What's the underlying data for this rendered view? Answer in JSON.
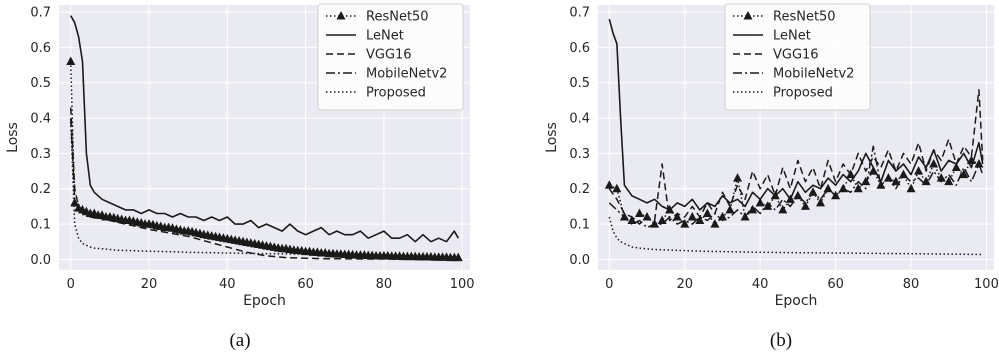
{
  "figure": {
    "captions": [
      "(a)",
      "(b)"
    ]
  },
  "colors": {
    "plot_background": "#eaeaf2",
    "grid": "#ffffff",
    "line": "#1a1a1a",
    "text": "#262626"
  },
  "chart_data": [
    {
      "type": "line",
      "xlabel": "Epoch",
      "ylabel": "Loss",
      "xlim": [
        -3,
        102
      ],
      "ylim": [
        -0.03,
        0.72
      ],
      "xticks": [
        0,
        20,
        40,
        60,
        80,
        100
      ],
      "yticks": [
        0.0,
        0.1,
        0.2,
        0.3,
        0.4,
        0.5,
        0.6,
        0.7
      ],
      "grid": true,
      "legend_position": "top-right",
      "series": [
        {
          "name": "ResNet50",
          "style": "dotted-triangle",
          "x": [
            0,
            1,
            2,
            3,
            4,
            5,
            6,
            7,
            8,
            9,
            10,
            11,
            12,
            13,
            14,
            15,
            16,
            17,
            18,
            19,
            20,
            21,
            22,
            23,
            24,
            25,
            26,
            27,
            28,
            29,
            30,
            31,
            32,
            33,
            34,
            35,
            36,
            37,
            38,
            39,
            40,
            41,
            42,
            43,
            44,
            45,
            46,
            47,
            48,
            49,
            50,
            51,
            52,
            53,
            54,
            55,
            56,
            57,
            58,
            59,
            60,
            61,
            62,
            63,
            64,
            65,
            66,
            67,
            68,
            69,
            70,
            71,
            72,
            73,
            74,
            75,
            76,
            77,
            78,
            79,
            80,
            81,
            82,
            83,
            84,
            85,
            86,
            87,
            88,
            89,
            90,
            91,
            92,
            93,
            94,
            95,
            96,
            97,
            98,
            99
          ],
          "y": [
            0.56,
            0.16,
            0.145,
            0.14,
            0.135,
            0.13,
            0.13,
            0.125,
            0.125,
            0.12,
            0.12,
            0.118,
            0.115,
            0.113,
            0.11,
            0.11,
            0.108,
            0.105,
            0.103,
            0.1,
            0.1,
            0.098,
            0.095,
            0.093,
            0.09,
            0.09,
            0.088,
            0.085,
            0.083,
            0.08,
            0.08,
            0.078,
            0.075,
            0.073,
            0.07,
            0.068,
            0.066,
            0.064,
            0.062,
            0.06,
            0.058,
            0.056,
            0.054,
            0.052,
            0.05,
            0.048,
            0.046,
            0.044,
            0.042,
            0.04,
            0.038,
            0.036,
            0.034,
            0.032,
            0.03,
            0.03,
            0.028,
            0.026,
            0.025,
            0.024,
            0.022,
            0.022,
            0.02,
            0.02,
            0.018,
            0.018,
            0.016,
            0.016,
            0.015,
            0.015,
            0.014,
            0.014,
            0.013,
            0.012,
            0.012,
            0.012,
            0.011,
            0.011,
            0.01,
            0.01,
            0.01,
            0.01,
            0.009,
            0.009,
            0.009,
            0.008,
            0.008,
            0.008,
            0.008,
            0.007,
            0.007,
            0.007,
            0.007,
            0.006,
            0.006,
            0.006,
            0.006,
            0.005,
            0.005,
            0.005
          ]
        },
        {
          "name": "LeNet",
          "style": "solid",
          "x": [
            0,
            1,
            2,
            3,
            4,
            5,
            6,
            8,
            10,
            12,
            14,
            16,
            18,
            20,
            22,
            24,
            26,
            28,
            30,
            32,
            34,
            36,
            38,
            40,
            42,
            44,
            46,
            48,
            50,
            52,
            54,
            56,
            58,
            60,
            62,
            64,
            66,
            68,
            70,
            72,
            74,
            76,
            78,
            80,
            82,
            84,
            86,
            88,
            90,
            92,
            94,
            96,
            98,
            99
          ],
          "y": [
            0.69,
            0.67,
            0.63,
            0.56,
            0.3,
            0.21,
            0.19,
            0.17,
            0.16,
            0.15,
            0.14,
            0.14,
            0.13,
            0.14,
            0.13,
            0.13,
            0.12,
            0.13,
            0.12,
            0.12,
            0.11,
            0.12,
            0.11,
            0.12,
            0.1,
            0.1,
            0.11,
            0.09,
            0.1,
            0.09,
            0.08,
            0.1,
            0.08,
            0.07,
            0.08,
            0.09,
            0.07,
            0.08,
            0.07,
            0.07,
            0.08,
            0.06,
            0.07,
            0.08,
            0.06,
            0.06,
            0.07,
            0.05,
            0.07,
            0.05,
            0.06,
            0.05,
            0.08,
            0.06
          ]
        },
        {
          "name": "VGG16",
          "style": "dashed",
          "x": [
            0,
            1,
            2,
            3,
            4,
            5,
            6,
            8,
            10,
            12,
            14,
            16,
            18,
            20,
            25,
            30,
            35,
            40,
            45,
            50,
            55,
            60,
            65,
            70,
            75,
            80,
            85,
            90,
            95,
            99
          ],
          "y": [
            0.43,
            0.2,
            0.15,
            0.14,
            0.13,
            0.125,
            0.12,
            0.115,
            0.11,
            0.105,
            0.1,
            0.095,
            0.09,
            0.085,
            0.075,
            0.065,
            0.05,
            0.035,
            0.02,
            0.01,
            0.005,
            0.003,
            0.002,
            0.002,
            0.001,
            0.001,
            0.001,
            0.001,
            0.001,
            0.001
          ]
        },
        {
          "name": "MobileNetv2",
          "style": "dashdot",
          "x": [
            0,
            1,
            2,
            3,
            4,
            5,
            6,
            8,
            10,
            12,
            14,
            16,
            18,
            20,
            25,
            30,
            35,
            40,
            45,
            50,
            55,
            60,
            65,
            70,
            75,
            80,
            85,
            90,
            95,
            99
          ],
          "y": [
            0.4,
            0.17,
            0.14,
            0.13,
            0.125,
            0.12,
            0.118,
            0.115,
            0.112,
            0.108,
            0.105,
            0.1,
            0.097,
            0.094,
            0.085,
            0.075,
            0.065,
            0.055,
            0.045,
            0.035,
            0.025,
            0.018,
            0.012,
            0.008,
            0.005,
            0.004,
            0.003,
            0.003,
            0.002,
            0.002
          ]
        },
        {
          "name": "Proposed",
          "style": "dotted",
          "x": [
            0,
            1,
            2,
            3,
            4,
            5,
            6,
            8,
            10,
            12,
            15,
            20,
            25,
            30,
            40,
            50,
            60,
            70,
            80,
            90,
            99
          ],
          "y": [
            0.39,
            0.1,
            0.06,
            0.045,
            0.04,
            0.035,
            0.032,
            0.03,
            0.028,
            0.026,
            0.025,
            0.023,
            0.022,
            0.02,
            0.018,
            0.016,
            0.015,
            0.013,
            0.012,
            0.011,
            0.01
          ]
        }
      ]
    },
    {
      "type": "line",
      "xlabel": "Epoch",
      "ylabel": "Loss",
      "xlim": [
        -3,
        102
      ],
      "ylim": [
        -0.03,
        0.72
      ],
      "xticks": [
        0,
        20,
        40,
        60,
        80,
        100
      ],
      "yticks": [
        0.0,
        0.1,
        0.2,
        0.3,
        0.4,
        0.5,
        0.6,
        0.7
      ],
      "grid": true,
      "legend_position": "top-center",
      "series": [
        {
          "name": "ResNet50",
          "style": "dotted-triangle",
          "x": [
            0,
            2,
            4,
            6,
            8,
            10,
            12,
            14,
            16,
            18,
            20,
            22,
            24,
            26,
            28,
            30,
            32,
            34,
            36,
            38,
            40,
            42,
            44,
            46,
            48,
            50,
            52,
            54,
            56,
            58,
            60,
            62,
            64,
            66,
            68,
            70,
            72,
            74,
            76,
            78,
            80,
            82,
            84,
            86,
            88,
            90,
            92,
            94,
            96,
            98
          ],
          "y": [
            0.21,
            0.2,
            0.12,
            0.11,
            0.13,
            0.12,
            0.1,
            0.11,
            0.14,
            0.12,
            0.1,
            0.12,
            0.11,
            0.13,
            0.1,
            0.12,
            0.14,
            0.23,
            0.12,
            0.14,
            0.16,
            0.15,
            0.18,
            0.14,
            0.17,
            0.18,
            0.15,
            0.19,
            0.16,
            0.2,
            0.18,
            0.2,
            0.24,
            0.2,
            0.22,
            0.25,
            0.21,
            0.23,
            0.22,
            0.24,
            0.2,
            0.25,
            0.22,
            0.27,
            0.23,
            0.22,
            0.26,
            0.24,
            0.28,
            0.27
          ]
        },
        {
          "name": "LeNet",
          "style": "solid",
          "x": [
            0,
            1,
            2,
            3,
            4,
            6,
            8,
            10,
            12,
            14,
            16,
            18,
            20,
            22,
            24,
            26,
            28,
            30,
            32,
            34,
            36,
            38,
            40,
            42,
            44,
            46,
            48,
            50,
            52,
            54,
            56,
            58,
            60,
            62,
            64,
            66,
            68,
            70,
            72,
            74,
            76,
            78,
            80,
            82,
            84,
            86,
            88,
            90,
            92,
            94,
            96,
            98,
            99
          ],
          "y": [
            0.68,
            0.64,
            0.61,
            0.4,
            0.21,
            0.18,
            0.17,
            0.16,
            0.17,
            0.15,
            0.14,
            0.16,
            0.15,
            0.17,
            0.14,
            0.16,
            0.15,
            0.18,
            0.16,
            0.17,
            0.15,
            0.19,
            0.17,
            0.2,
            0.18,
            0.2,
            0.17,
            0.22,
            0.19,
            0.21,
            0.2,
            0.23,
            0.21,
            0.24,
            0.22,
            0.25,
            0.3,
            0.26,
            0.22,
            0.28,
            0.25,
            0.27,
            0.24,
            0.29,
            0.26,
            0.31,
            0.25,
            0.28,
            0.27,
            0.3,
            0.26,
            0.33,
            0.27
          ]
        },
        {
          "name": "VGG16",
          "style": "dashed",
          "x": [
            0,
            2,
            4,
            6,
            8,
            10,
            12,
            14,
            16,
            18,
            20,
            22,
            24,
            26,
            28,
            30,
            32,
            34,
            36,
            38,
            40,
            42,
            44,
            46,
            48,
            50,
            52,
            54,
            56,
            58,
            60,
            62,
            64,
            66,
            68,
            70,
            72,
            74,
            76,
            78,
            80,
            82,
            84,
            86,
            88,
            90,
            92,
            94,
            96,
            98,
            99
          ],
          "y": [
            0.2,
            0.17,
            0.13,
            0.12,
            0.1,
            0.12,
            0.11,
            0.27,
            0.11,
            0.13,
            0.12,
            0.15,
            0.12,
            0.16,
            0.13,
            0.19,
            0.15,
            0.21,
            0.17,
            0.25,
            0.2,
            0.24,
            0.18,
            0.26,
            0.2,
            0.28,
            0.22,
            0.26,
            0.2,
            0.28,
            0.22,
            0.27,
            0.24,
            0.3,
            0.25,
            0.29,
            0.26,
            0.31,
            0.25,
            0.3,
            0.27,
            0.33,
            0.25,
            0.31,
            0.28,
            0.34,
            0.27,
            0.32,
            0.29,
            0.48,
            0.28
          ]
        },
        {
          "name": "MobileNetv2",
          "style": "dashdot",
          "x": [
            0,
            2,
            4,
            6,
            8,
            10,
            12,
            14,
            16,
            18,
            20,
            22,
            24,
            26,
            28,
            30,
            32,
            34,
            36,
            38,
            40,
            42,
            44,
            46,
            48,
            50,
            52,
            54,
            56,
            58,
            60,
            62,
            64,
            66,
            68,
            70,
            72,
            74,
            76,
            78,
            80,
            82,
            84,
            86,
            88,
            90,
            92,
            94,
            96,
            98,
            99
          ],
          "y": [
            0.16,
            0.14,
            0.12,
            0.1,
            0.11,
            0.09,
            0.1,
            0.1,
            0.12,
            0.1,
            0.11,
            0.1,
            0.12,
            0.11,
            0.13,
            0.11,
            0.12,
            0.14,
            0.12,
            0.15,
            0.13,
            0.16,
            0.14,
            0.17,
            0.15,
            0.18,
            0.16,
            0.19,
            0.17,
            0.2,
            0.18,
            0.2,
            0.19,
            0.22,
            0.2,
            0.32,
            0.21,
            0.23,
            0.2,
            0.24,
            0.22,
            0.23,
            0.21,
            0.25,
            0.22,
            0.24,
            0.21,
            0.26,
            0.22,
            0.27,
            0.24
          ]
        },
        {
          "name": "Proposed",
          "style": "dotted",
          "x": [
            0,
            1,
            2,
            3,
            4,
            5,
            6,
            8,
            10,
            12,
            15,
            20,
            25,
            30,
            40,
            50,
            60,
            70,
            80,
            90,
            99
          ],
          "y": [
            0.12,
            0.08,
            0.06,
            0.05,
            0.045,
            0.04,
            0.035,
            0.032,
            0.03,
            0.028,
            0.027,
            0.025,
            0.023,
            0.022,
            0.02,
            0.019,
            0.018,
            0.017,
            0.016,
            0.015,
            0.014
          ]
        }
      ]
    }
  ]
}
